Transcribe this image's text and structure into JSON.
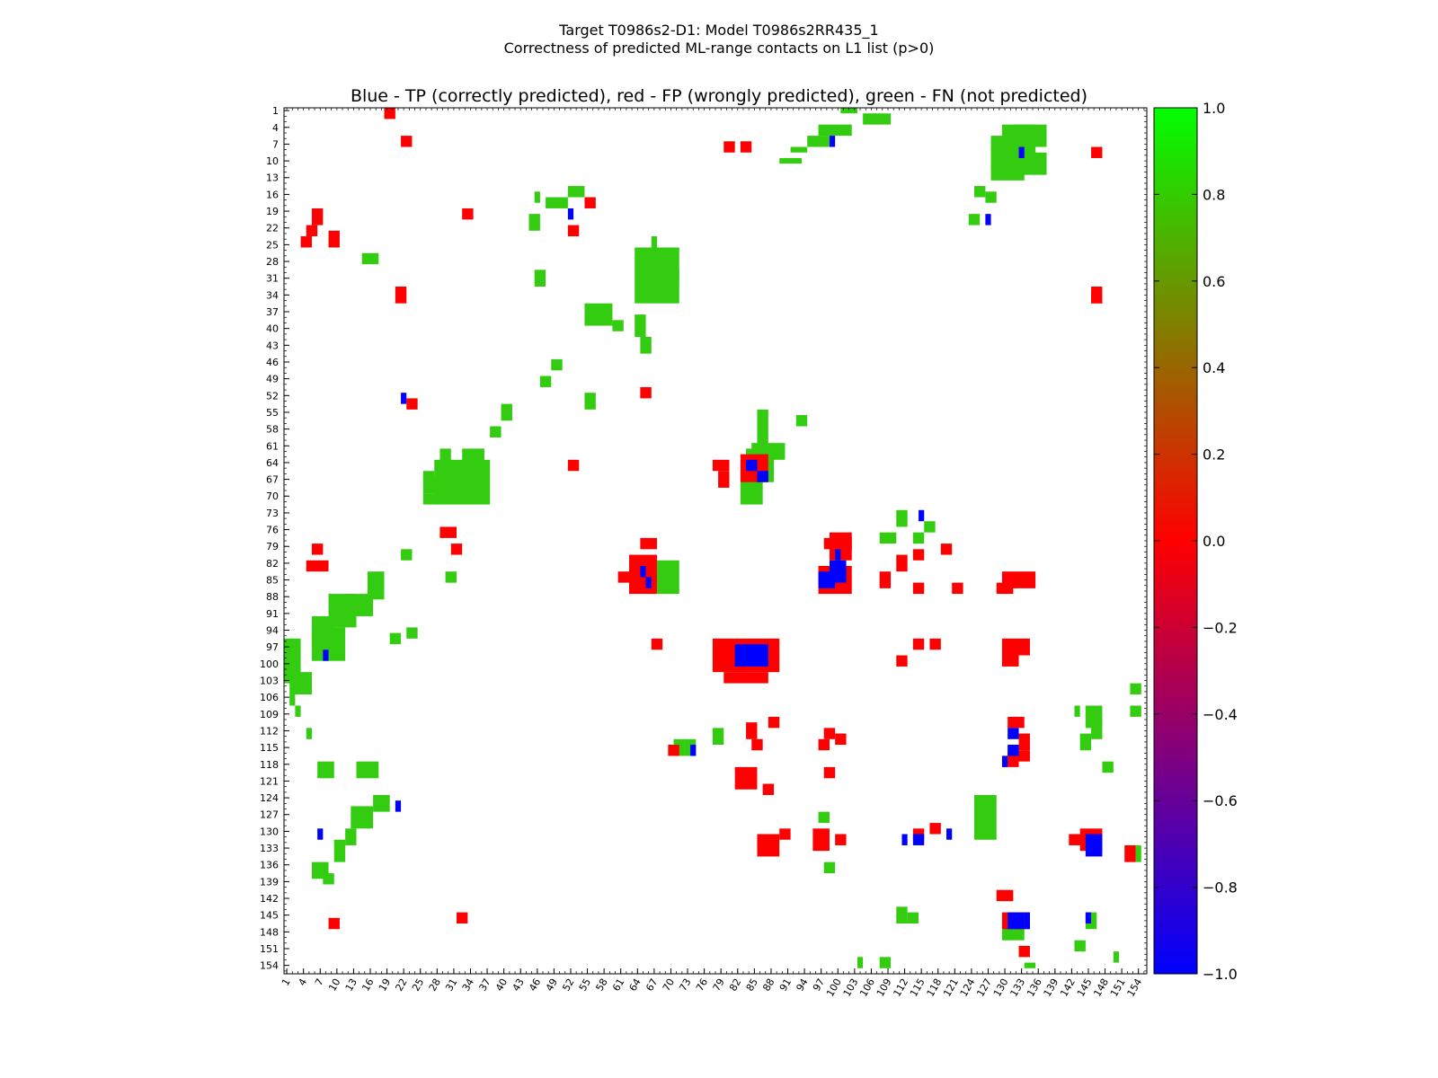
{
  "chart_data": {
    "type": "heatmap",
    "title_line1": "Target T0986s2-D1: Model T0986s2RR435_1",
    "title_line2": "Correctness of predicted ML-range contacts on L1 list (p>0)",
    "subtitle": "Blue - TP (correctly predicted), red - FP (wrongly predicted), green - FN (not predicted)",
    "xlabel": "",
    "ylabel": "",
    "residue_range": [
      1,
      155
    ],
    "tick_labels": [
      "1",
      "4",
      "7",
      "10",
      "13",
      "16",
      "19",
      "22",
      "25",
      "28",
      "31",
      "34",
      "37",
      "40",
      "43",
      "46",
      "49",
      "52",
      "55",
      "58",
      "61",
      "64",
      "67",
      "70",
      "73",
      "76",
      "79",
      "82",
      "85",
      "88",
      "91",
      "94",
      "97",
      "100",
      "103",
      "106",
      "109",
      "112",
      "115",
      "118",
      "121",
      "124",
      "127",
      "130",
      "133",
      "136",
      "139",
      "142",
      "145",
      "148",
      "151",
      "154"
    ],
    "grid": false,
    "colorbar": {
      "range": [
        -1.0,
        1.0
      ],
      "tick_labels": [
        "1.0",
        "0.8",
        "0.6",
        "0.4",
        "0.2",
        "0.0",
        "−0.2",
        "−0.4",
        "−0.6",
        "−0.8",
        "−1.0"
      ],
      "colors": [
        "#0000ff",
        "#ff0000",
        "#00ff00"
      ]
    },
    "colors": {
      "tp": "#0000ff",
      "fp": "#ff0000",
      "fn": "#33cc11"
    },
    "fn_rects": [
      [
        101,
        104,
        1,
        2
      ],
      [
        105,
        110,
        2,
        4
      ],
      [
        97,
        103,
        4,
        6
      ],
      [
        95,
        99,
        6,
        8
      ],
      [
        92,
        95,
        8,
        9
      ],
      [
        90,
        94,
        10,
        11
      ],
      [
        64,
        72,
        26,
        36
      ],
      [
        55,
        60,
        36,
        40
      ],
      [
        28,
        38,
        64,
        72
      ],
      [
        26,
        29,
        67,
        70
      ],
      [
        84,
        89,
        62,
        68
      ],
      [
        68,
        72,
        82,
        88
      ],
      [
        83,
        87,
        66,
        72
      ],
      [
        85,
        91,
        61,
        64
      ],
      [
        1,
        4,
        96,
        104
      ],
      [
        6,
        10,
        92,
        98
      ],
      [
        9,
        14,
        88,
        94
      ],
      [
        2,
        6,
        102,
        106
      ],
      [
        6,
        12,
        94,
        100
      ],
      [
        12,
        17,
        88,
        92
      ],
      [
        16,
        19,
        84,
        89
      ],
      [
        22,
        24,
        80,
        82
      ],
      [
        26,
        29,
        70,
        72
      ],
      [
        33,
        37,
        62,
        66
      ],
      [
        38,
        40,
        58,
        60
      ],
      [
        128,
        134,
        6,
        14
      ],
      [
        130,
        136,
        4,
        10
      ],
      [
        133,
        138,
        9,
        13
      ],
      [
        129,
        135,
        10,
        12
      ],
      [
        125,
        129,
        124,
        132
      ],
      [
        132,
        138,
        4,
        8
      ],
      [
        128,
        132,
        8,
        12
      ],
      [
        13,
        17,
        126,
        130
      ],
      [
        17,
        20,
        124,
        127
      ],
      [
        14,
        18,
        118,
        121
      ],
      [
        7,
        10,
        118,
        121
      ],
      [
        40,
        42,
        54,
        57
      ],
      [
        52,
        55,
        15,
        17
      ],
      [
        48,
        52,
        17,
        19
      ],
      [
        45,
        47,
        20,
        23
      ],
      [
        46,
        48,
        30,
        33
      ],
      [
        78,
        80,
        112,
        115
      ],
      [
        71,
        73,
        114,
        117
      ],
      [
        73,
        75,
        114,
        117
      ],
      [
        145,
        148,
        108,
        112
      ],
      [
        148,
        150,
        118,
        120
      ],
      [
        111,
        113,
        144,
        147
      ],
      [
        113,
        115,
        145,
        147
      ],
      [
        130,
        134,
        147,
        150
      ],
      [
        146,
        148,
        110,
        114
      ],
      [
        145,
        147,
        145,
        148
      ],
      [
        1,
        3,
        100,
        102
      ],
      [
        2,
        3,
        106,
        108
      ],
      [
        3,
        4,
        108,
        110
      ],
      [
        5,
        6,
        112,
        114
      ],
      [
        47,
        49,
        49,
        51
      ],
      [
        49,
        51,
        46,
        48
      ],
      [
        55,
        57,
        52,
        55
      ],
      [
        46,
        47,
        16,
        18
      ],
      [
        67,
        68,
        24,
        27
      ],
      [
        69,
        72,
        30,
        32
      ],
      [
        86,
        88,
        55,
        62
      ],
      [
        93,
        95,
        56,
        58
      ],
      [
        15,
        18,
        27,
        29
      ],
      [
        26,
        28,
        66,
        68
      ],
      [
        30,
        32,
        84,
        86
      ],
      [
        125,
        127,
        15,
        17
      ],
      [
        127,
        129,
        16,
        18
      ],
      [
        124,
        126,
        20,
        22
      ],
      [
        111,
        113,
        73,
        76
      ],
      [
        108,
        111,
        77,
        79
      ],
      [
        116,
        118,
        75,
        77
      ],
      [
        114,
        116,
        77,
        79
      ],
      [
        97,
        99,
        127,
        129
      ],
      [
        98,
        100,
        136,
        138
      ],
      [
        104,
        105,
        153,
        155
      ],
      [
        108,
        110,
        153,
        155
      ],
      [
        153,
        155,
        104,
        106
      ],
      [
        153,
        155,
        108,
        110
      ],
      [
        154,
        155,
        133,
        136
      ],
      [
        134,
        136,
        154,
        155
      ],
      [
        143,
        145,
        150,
        152
      ],
      [
        150,
        151,
        152,
        154
      ],
      [
        143,
        144,
        108,
        110
      ],
      [
        144,
        146,
        113,
        116
      ],
      [
        10,
        12,
        132,
        136
      ],
      [
        12,
        14,
        130,
        133
      ],
      [
        6,
        9,
        136,
        139
      ],
      [
        8,
        10,
        138,
        140
      ],
      [
        20,
        22,
        95,
        97
      ],
      [
        23,
        25,
        94,
        96
      ],
      [
        29,
        31,
        62,
        65
      ],
      [
        65,
        67,
        42,
        45
      ],
      [
        64,
        66,
        38,
        42
      ],
      [
        60,
        62,
        39,
        41
      ]
    ],
    "fp_rects": [
      [
        6,
        8,
        19,
        22
      ],
      [
        22,
        24,
        6,
        8
      ],
      [
        19,
        21,
        1,
        3
      ],
      [
        6,
        8,
        79,
        81
      ],
      [
        5,
        9,
        82,
        84
      ],
      [
        5,
        7,
        22,
        24
      ],
      [
        4,
        6,
        24,
        26
      ],
      [
        9,
        11,
        23,
        26
      ],
      [
        33,
        35,
        19,
        21
      ],
      [
        9,
        11,
        146,
        148
      ],
      [
        32,
        34,
        145,
        147
      ],
      [
        29,
        32,
        76,
        78
      ],
      [
        31,
        33,
        79,
        81
      ],
      [
        63,
        68,
        81,
        88
      ],
      [
        65,
        68,
        78,
        80
      ],
      [
        64,
        68,
        84,
        86
      ],
      [
        67,
        69,
        96,
        98
      ],
      [
        61,
        66,
        84,
        86
      ],
      [
        78,
        81,
        64,
        66
      ],
      [
        79,
        81,
        66,
        69
      ],
      [
        83,
        88,
        63,
        68
      ],
      [
        78,
        90,
        96,
        102
      ],
      [
        80,
        88,
        102,
        104
      ],
      [
        97,
        103,
        83,
        88
      ],
      [
        99,
        103,
        77,
        82
      ],
      [
        98,
        103,
        78,
        80
      ],
      [
        86,
        90,
        131,
        135
      ],
      [
        90,
        92,
        130,
        132
      ],
      [
        96,
        99,
        130,
        134
      ],
      [
        100,
        102,
        131,
        133
      ],
      [
        130,
        136,
        84,
        87
      ],
      [
        129,
        132,
        86,
        88
      ],
      [
        130,
        135,
        96,
        99
      ],
      [
        130,
        133,
        99,
        101
      ],
      [
        131,
        134,
        110,
        112
      ],
      [
        131,
        135,
        116,
        118
      ],
      [
        133,
        135,
        113,
        116
      ],
      [
        130,
        133,
        117,
        119
      ],
      [
        144,
        148,
        130,
        134
      ],
      [
        142,
        146,
        131,
        133
      ],
      [
        132,
        135,
        145,
        148
      ],
      [
        129,
        132,
        141,
        143
      ],
      [
        152,
        154,
        133,
        136
      ],
      [
        130,
        132,
        145,
        148
      ],
      [
        133,
        135,
        151,
        153
      ],
      [
        146,
        148,
        8,
        10
      ],
      [
        146,
        148,
        34,
        36
      ],
      [
        111,
        113,
        81,
        84
      ],
      [
        108,
        110,
        84,
        87
      ],
      [
        114,
        116,
        86,
        88
      ],
      [
        114,
        116,
        80,
        82
      ],
      [
        114,
        116,
        96,
        98
      ],
      [
        117,
        119,
        96,
        98
      ],
      [
        119,
        121,
        79,
        81
      ],
      [
        121,
        123,
        86,
        88
      ],
      [
        114,
        116,
        130,
        132
      ],
      [
        117,
        119,
        129,
        131
      ],
      [
        111,
        113,
        99,
        101
      ],
      [
        80,
        82,
        7,
        9
      ],
      [
        83,
        85,
        7,
        9
      ],
      [
        85,
        87,
        114,
        116
      ],
      [
        82,
        86,
        119,
        123
      ],
      [
        84,
        86,
        111,
        114
      ],
      [
        88,
        90,
        110,
        112
      ],
      [
        87,
        89,
        122,
        124
      ],
      [
        98,
        100,
        119,
        121
      ],
      [
        97,
        99,
        114,
        116
      ],
      [
        98,
        100,
        112,
        114
      ],
      [
        100,
        102,
        113,
        115
      ],
      [
        70,
        72,
        115,
        117
      ],
      [
        52,
        54,
        22,
        24
      ],
      [
        52,
        54,
        64,
        66
      ],
      [
        65,
        67,
        51,
        53
      ],
      [
        55,
        57,
        17,
        19
      ],
      [
        21,
        23,
        33,
        36
      ],
      [
        146,
        148,
        33,
        36
      ],
      [
        23,
        25,
        53,
        55
      ]
    ],
    "tp_rects": [
      [
        8,
        9,
        98,
        100
      ],
      [
        7,
        8,
        130,
        132
      ],
      [
        21,
        22,
        125,
        127
      ],
      [
        22,
        23,
        52,
        54
      ],
      [
        52,
        53,
        19,
        21
      ],
      [
        99,
        100,
        6,
        8
      ],
      [
        65,
        66,
        83,
        85
      ],
      [
        66,
        67,
        85,
        87
      ],
      [
        84,
        86,
        64,
        66
      ],
      [
        86,
        88,
        66,
        68
      ],
      [
        82,
        88,
        97,
        101
      ],
      [
        84,
        87,
        99,
        101
      ],
      [
        99,
        102,
        82,
        86
      ],
      [
        97,
        100,
        84,
        87
      ],
      [
        100,
        101,
        80,
        82
      ],
      [
        133,
        134,
        8,
        10
      ],
      [
        127,
        128,
        20,
        22
      ],
      [
        131,
        133,
        112,
        114
      ],
      [
        131,
        133,
        115,
        117
      ],
      [
        130,
        131,
        117,
        119
      ],
      [
        112,
        113,
        131,
        133
      ],
      [
        114,
        116,
        131,
        133
      ],
      [
        120,
        121,
        130,
        132
      ],
      [
        131,
        134,
        145,
        148
      ],
      [
        145,
        148,
        131,
        135
      ],
      [
        74,
        75,
        115,
        117
      ],
      [
        115,
        116,
        73,
        75
      ],
      [
        145,
        146,
        145,
        147
      ],
      [
        134,
        135,
        145,
        148
      ]
    ]
  }
}
